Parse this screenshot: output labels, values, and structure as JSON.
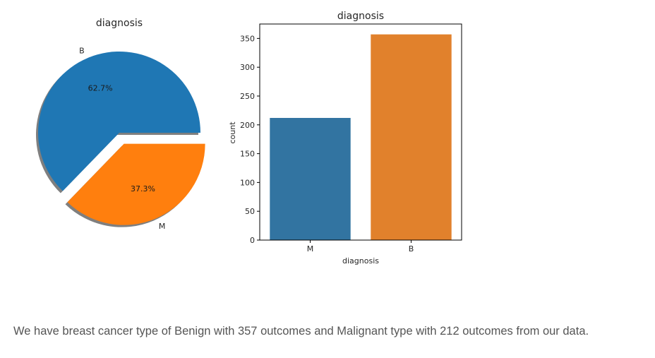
{
  "chart_data": [
    {
      "type": "pie",
      "title": "diagnosis",
      "categories": [
        "B",
        "M"
      ],
      "values": [
        357,
        212
      ],
      "percent_labels": [
        "62.7%",
        "37.3%"
      ],
      "colors": [
        "#1f77b4",
        "#ff7f0e"
      ],
      "exploded": [
        "M"
      ],
      "shadow": true
    },
    {
      "type": "bar",
      "title": "diagnosis",
      "categories": [
        "M",
        "B"
      ],
      "values": [
        212,
        357
      ],
      "colors": [
        "#3274a1",
        "#e1812c"
      ],
      "xlabel": "diagnosis",
      "ylabel": "count",
      "ylim": [
        0,
        375
      ],
      "yticks": [
        0,
        50,
        100,
        150,
        200,
        250,
        300,
        350
      ],
      "grid": false
    }
  ],
  "caption": "We have breast cancer type of Benign with 357 outcomes and Malignant type with 212 outcomes from our data."
}
